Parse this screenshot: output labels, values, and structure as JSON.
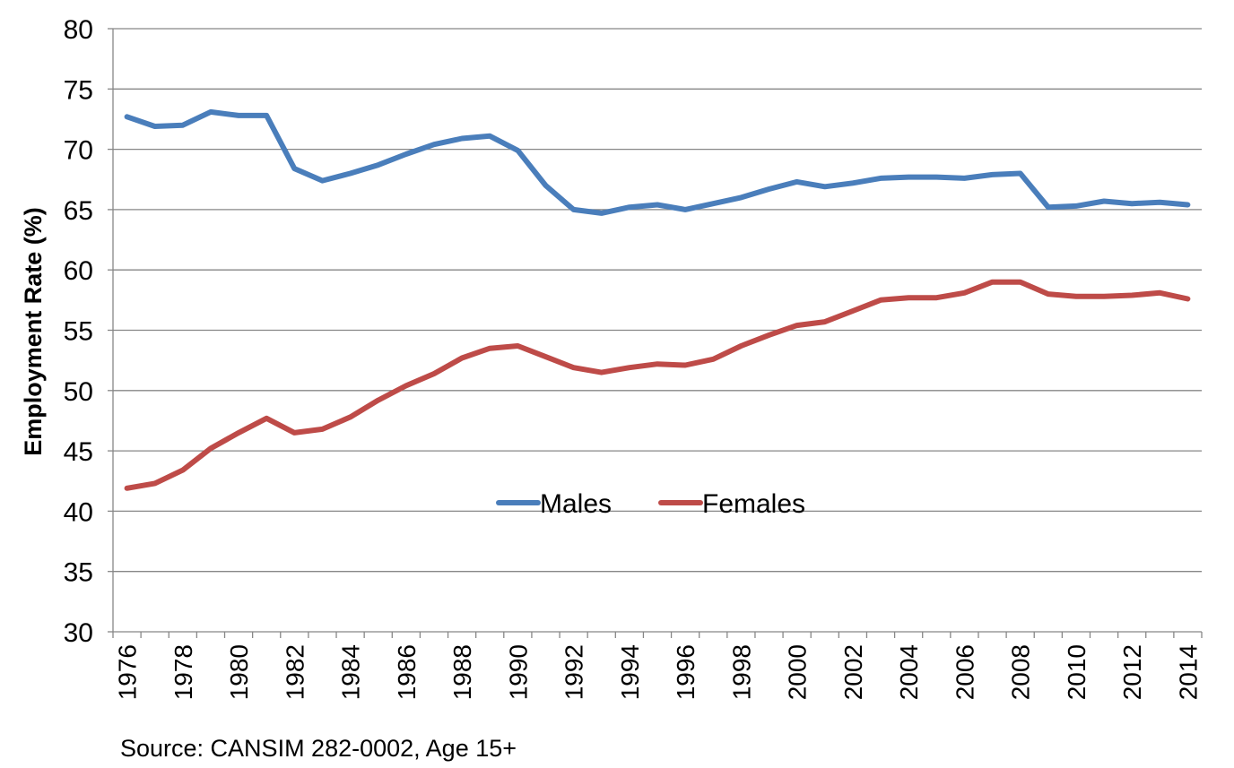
{
  "chart_data": {
    "type": "line",
    "title": "",
    "xlabel": "",
    "ylabel": "Employment Rate (%)",
    "ylim": [
      30,
      80
    ],
    "y_ticks": [
      "30",
      "35",
      "40",
      "45",
      "50",
      "55",
      "60",
      "65",
      "70",
      "75",
      "80"
    ],
    "x_tick_labels": [
      "1976",
      "1978",
      "1980",
      "1982",
      "1984",
      "1986",
      "1988",
      "1990",
      "1992",
      "1994",
      "1996",
      "1998",
      "2000",
      "2002",
      "2004",
      "2006",
      "2008",
      "2010",
      "2012",
      "2014"
    ],
    "x": [
      1976,
      1977,
      1978,
      1979,
      1980,
      1981,
      1982,
      1983,
      1984,
      1985,
      1986,
      1987,
      1988,
      1989,
      1990,
      1991,
      1992,
      1993,
      1994,
      1995,
      1996,
      1997,
      1998,
      1999,
      2000,
      2001,
      2002,
      2003,
      2004,
      2005,
      2006,
      2007,
      2008,
      2009,
      2010,
      2011,
      2012,
      2013,
      2014
    ],
    "grid": "horizontal",
    "legend_position": "center",
    "series": [
      {
        "name": "Males",
        "color": "#4a7ebb",
        "values": [
          72.7,
          71.9,
          72.0,
          73.1,
          72.8,
          72.8,
          68.4,
          67.4,
          68.0,
          68.7,
          69.6,
          70.4,
          70.9,
          71.1,
          69.9,
          67.0,
          65.0,
          64.7,
          65.2,
          65.4,
          65.0,
          65.5,
          66.0,
          66.7,
          67.3,
          66.9,
          67.2,
          67.6,
          67.7,
          67.7,
          67.6,
          67.9,
          68.0,
          65.2,
          65.3,
          65.7,
          65.5,
          65.6,
          65.4
        ]
      },
      {
        "name": "Females",
        "color": "#be4b48",
        "values": [
          41.9,
          42.3,
          43.4,
          45.2,
          46.5,
          47.7,
          46.5,
          46.8,
          47.8,
          49.2,
          50.4,
          51.4,
          52.7,
          53.5,
          53.7,
          52.8,
          51.9,
          51.5,
          51.9,
          52.2,
          52.1,
          52.6,
          53.7,
          54.6,
          55.4,
          55.7,
          56.6,
          57.5,
          57.7,
          57.7,
          58.1,
          59.0,
          59.0,
          58.0,
          57.8,
          57.8,
          57.9,
          58.1,
          57.6
        ]
      }
    ]
  },
  "source_text": "Source: CANSIM 282-0002, Age 15+"
}
